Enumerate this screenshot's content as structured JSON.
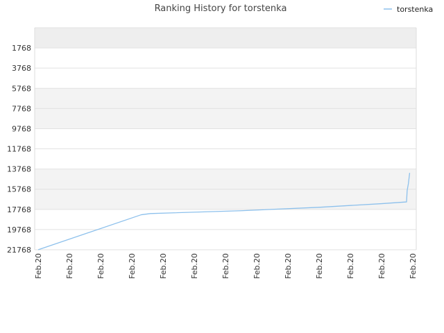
{
  "chart_data": {
    "type": "line",
    "title": "Ranking History for torstenka",
    "xlabel": "",
    "ylabel": "",
    "y_axis": "inverted",
    "ylim": [
      21768,
      0
    ],
    "yticks": [
      1768,
      3768,
      5768,
      7768,
      9768,
      11768,
      13768,
      15768,
      17768,
      19768,
      21768
    ],
    "x_tick_labels": [
      "Feb.20",
      "Feb.20",
      "Feb.20",
      "Feb.20",
      "Feb.20",
      "Feb.20",
      "Feb.20",
      "Feb.20",
      "Feb.20",
      "Feb.20",
      "Feb.20",
      "Feb.20",
      "Feb.20"
    ],
    "grid": true,
    "legend_position": "top-right",
    "series": [
      {
        "name": "torstenka",
        "color": "#8cc0ec",
        "x": [
          0,
          3.3,
          3.6,
          6.5,
          9.0,
          11.0,
          11.8,
          11.82,
          11.86,
          11.9
        ],
        "y": [
          21768,
          18300,
          18180,
          17900,
          17560,
          17200,
          17030,
          15900,
          15200,
          14150
        ]
      }
    ]
  }
}
